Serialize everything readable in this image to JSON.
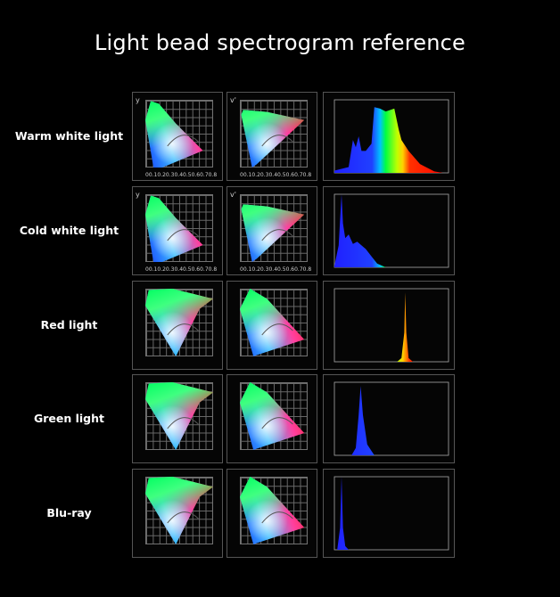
{
  "title": "Light bead spectrogram reference",
  "rows": [
    {
      "label": "Warm white light",
      "cie_style": "xy"
    },
    {
      "label": "Cold white light",
      "cie_style": "xy"
    },
    {
      "label": "Red light",
      "cie_style": "uv"
    },
    {
      "label": "Green light",
      "cie_style": "uv"
    },
    {
      "label": "Blu-ray",
      "cie_style": "uv"
    }
  ],
  "axes": {
    "x_label": "x",
    "y_label": "y",
    "u_label": "u'",
    "v_label": "v'",
    "xy_ticks": [
      "0",
      "0.1",
      "0.2",
      "0.3",
      "0.4",
      "0.5",
      "0.6",
      "0.7",
      "0.8"
    ]
  },
  "chart_data": [
    {
      "type": "area",
      "name": "",
      "xlim": [
        380,
        780
      ],
      "ylim": [
        0,
        100
      ],
      "x": [
        380,
        400,
        430,
        445,
        455,
        465,
        475,
        490,
        510,
        520,
        540,
        560,
        590,
        605,
        615,
        640,
        680,
        730,
        760
      ],
      "y": [
        3,
        5,
        8,
        45,
        35,
        50,
        30,
        30,
        40,
        90,
        88,
        84,
        88,
        60,
        45,
        30,
        12,
        2,
        0
      ]
    },
    {
      "type": "area",
      "name": "",
      "xlim": [
        380,
        780
      ],
      "ylim": [
        0,
        100
      ],
      "x": [
        380,
        395,
        405,
        410,
        418,
        430,
        445,
        460,
        475,
        490,
        510,
        530,
        560
      ],
      "y": [
        2,
        30,
        100,
        60,
        40,
        45,
        32,
        35,
        30,
        25,
        15,
        5,
        0
      ]
    },
    {
      "type": "area",
      "name": "",
      "xlim": [
        380,
        780
      ],
      "ylim": [
        0,
        100
      ],
      "x": [
        380,
        600,
        615,
        625,
        628,
        632,
        640,
        655,
        780
      ],
      "y": [
        0,
        0,
        5,
        40,
        95,
        40,
        5,
        0,
        0
      ]
    },
    {
      "type": "area",
      "name": "",
      "xlim": [
        380,
        780
      ],
      "ylim": [
        0,
        100
      ],
      "x": [
        380,
        440,
        455,
        465,
        472,
        480,
        495,
        520,
        780
      ],
      "y": [
        0,
        0,
        10,
        55,
        95,
        55,
        15,
        0,
        0
      ]
    },
    {
      "type": "area",
      "name": "",
      "xlim": [
        380,
        780
      ],
      "ylim": [
        0,
        100
      ],
      "x": [
        380,
        390,
        400,
        405,
        410,
        418,
        430,
        780
      ],
      "y": [
        0,
        0,
        30,
        100,
        30,
        5,
        0,
        0
      ]
    }
  ]
}
